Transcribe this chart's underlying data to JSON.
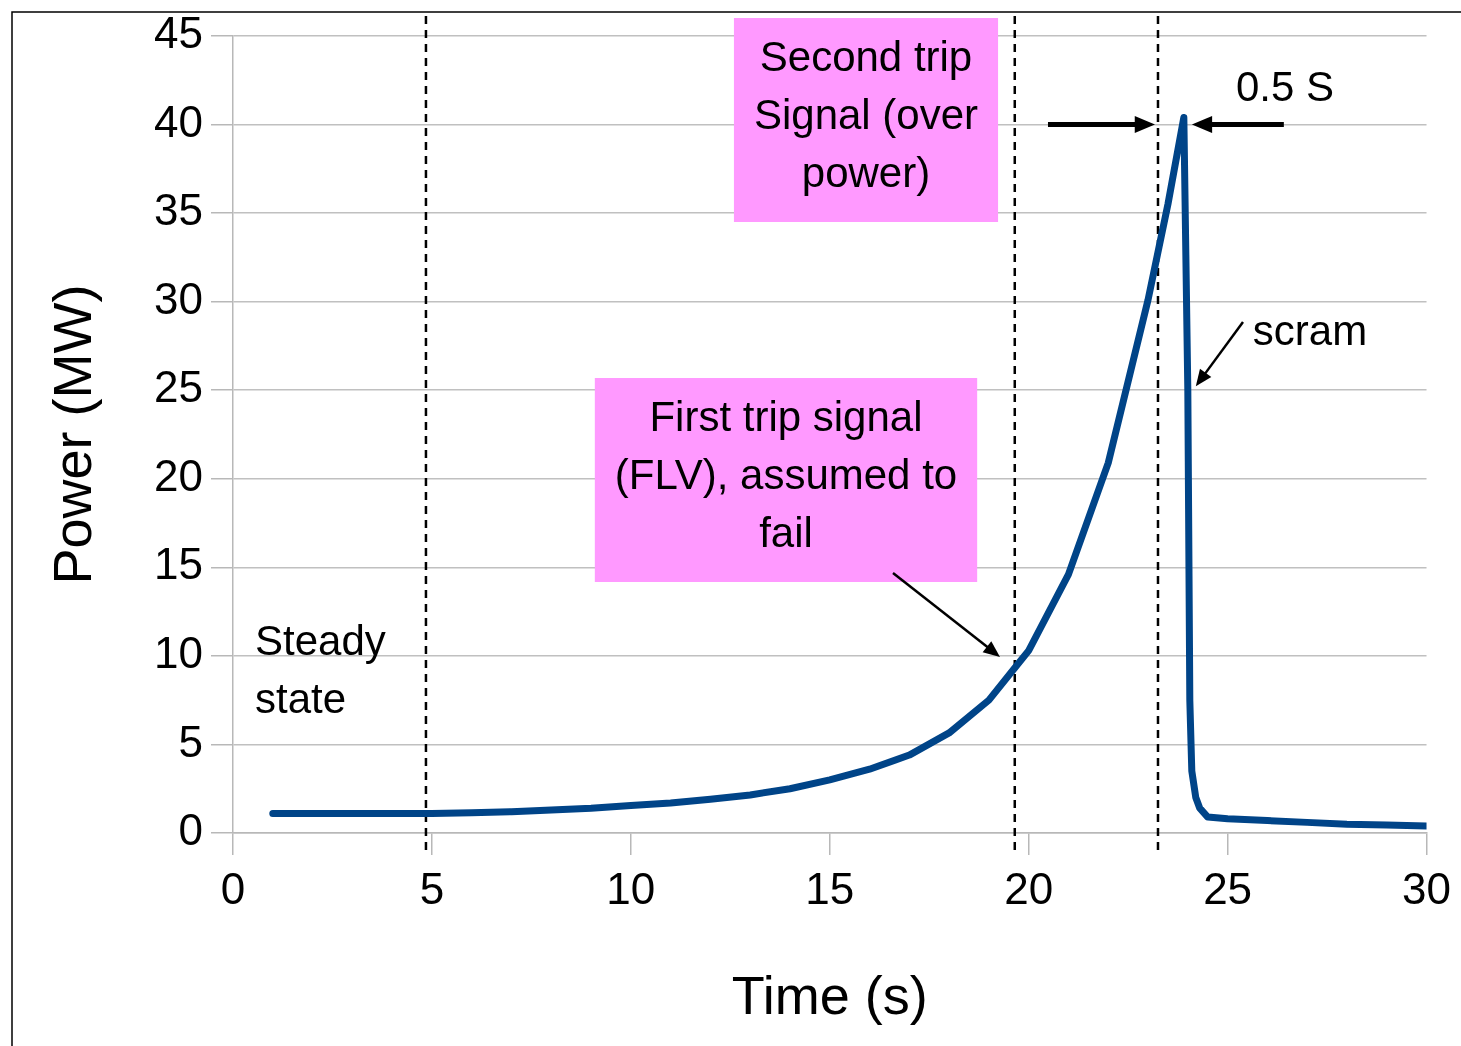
{
  "chart_data": {
    "type": "line",
    "xlabel": "Time (s)",
    "ylabel": "Power (MW)",
    "x": [
      1,
      2,
      3,
      4,
      5,
      6,
      7,
      8,
      9,
      10,
      11,
      12,
      13,
      14,
      15,
      16,
      17,
      18,
      19,
      20,
      21,
      22,
      23,
      23.5,
      23.9,
      24.0,
      24.05,
      24.1,
      24.2,
      24.3,
      24.5,
      25,
      26,
      27,
      28,
      29,
      30
    ],
    "series": [
      {
        "color": "#004488",
        "values": [
          1.1,
          1.1,
          1.1,
          1.1,
          1.1,
          1.15,
          1.2,
          1.3,
          1.4,
          1.55,
          1.7,
          1.9,
          2.15,
          2.5,
          3.0,
          3.6,
          4.4,
          5.65,
          7.5,
          10.3,
          14.6,
          20.9,
          30.1,
          35.5,
          40.4,
          25,
          7.5,
          3.5,
          2.0,
          1.4,
          0.9,
          0.8,
          0.7,
          0.6,
          0.5,
          0.45,
          0.4
        ]
      }
    ],
    "xlim": [
      0,
      30
    ],
    "xticks": [
      0,
      5,
      10,
      15,
      20,
      25,
      30
    ],
    "ylim": [
      0,
      45
    ],
    "yticks": [
      0,
      5,
      10,
      15,
      20,
      25,
      30,
      35,
      40,
      45
    ],
    "grid": "y",
    "legend": false,
    "marker": "none",
    "line_style": "solid",
    "ref_lines": [
      {
        "axis": "x",
        "value": 4.85,
        "color": "#000000",
        "line_style": "dashed"
      },
      {
        "axis": "x",
        "value": 19.65,
        "color": "#000000",
        "line_style": "dashed"
      },
      {
        "axis": "x",
        "value": 23.25,
        "color": "#000000",
        "line_style": "dashed"
      }
    ],
    "annotations": [
      "Steady state",
      "First trip signal (FLV), assumed to fail",
      "Second trip Signal (over power)",
      {
        "text": "0.5 S",
        "x": 23.9,
        "y": 40
      },
      {
        "text": "scram",
        "x": 24,
        "y": 25
      }
    ]
  }
}
